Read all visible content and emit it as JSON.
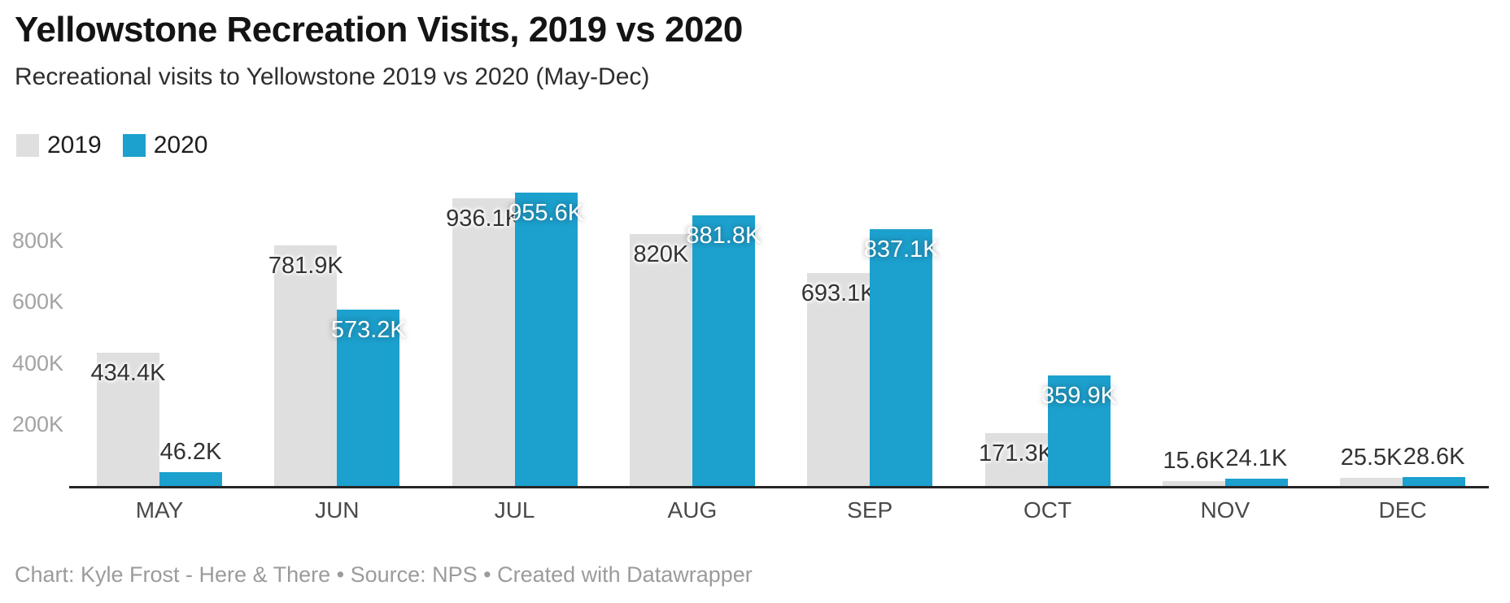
{
  "header": {
    "title": "Yellowstone Recreation Visits, 2019 vs 2020",
    "subtitle": "Recreational visits to Yellowstone 2019 vs 2020 (May-Dec)"
  },
  "legend": {
    "items": [
      {
        "label": "2019",
        "color": "#e0dfdf"
      },
      {
        "label": "2020",
        "color": "#1ca0ce"
      }
    ]
  },
  "footer": {
    "credit": "Chart: Kyle Frost - Here & There • Source: NPS • Created with Datawrapper"
  },
  "colors": {
    "bar_2019": "#e0dfdf",
    "bar_2020": "#1ca0ce",
    "axis_line": "#262626",
    "ytick_text": "#a3a3a3",
    "xlabel_text": "#4a4a4a",
    "label_dark": "#333333",
    "label_white": "#ffffff"
  },
  "chart_data": {
    "type": "bar",
    "title": "Yellowstone Recreation Visits, 2019 vs 2020",
    "subtitle": "Recreational visits to Yellowstone 2019 vs 2020 (May-Dec)",
    "xlabel": "",
    "ylabel": "",
    "grid": false,
    "legend_position": "top-left",
    "ylim": [
      0,
      1010000
    ],
    "categories": [
      "MAY",
      "JUN",
      "JUL",
      "AUG",
      "SEP",
      "OCT",
      "NOV",
      "DEC"
    ],
    "yticks": [
      {
        "label": "200K",
        "value": 200000
      },
      {
        "label": "400K",
        "value": 400000
      },
      {
        "label": "600K",
        "value": 600000
      },
      {
        "label": "800K",
        "value": 800000
      }
    ],
    "series": [
      {
        "name": "2019",
        "color": "#e0dfdf",
        "values": [
          434400,
          781900,
          936100,
          820000,
          693100,
          171300,
          15600,
          25500
        ],
        "labels": [
          "434.4K",
          "781.9K",
          "936.1K",
          "820K",
          "693.1K",
          "171.3K",
          "15.6K",
          "25.5K"
        ],
        "label_inside": [
          true,
          true,
          true,
          true,
          true,
          true,
          false,
          false
        ]
      },
      {
        "name": "2020",
        "color": "#1ca0ce",
        "values": [
          46200,
          573200,
          955600,
          881800,
          837100,
          359900,
          24100,
          28600
        ],
        "labels": [
          "46.2K",
          "573.2K",
          "955.6K",
          "881.8K",
          "837.1K",
          "359.9K",
          "24.1K",
          "28.6K"
        ],
        "label_inside": [
          false,
          true,
          true,
          true,
          true,
          true,
          false,
          false
        ]
      }
    ]
  }
}
